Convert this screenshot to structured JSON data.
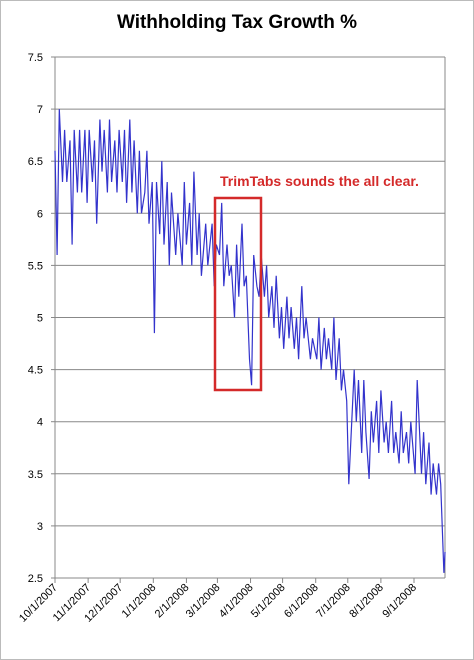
{
  "chart_data": {
    "type": "line",
    "title": "Withholding Tax Growth %",
    "annotation": "TrimTabs sounds the all clear.",
    "grid": true,
    "ylim": [
      2.5,
      7.5
    ],
    "yticks": [
      2.5,
      3,
      3.5,
      4,
      4.5,
      5,
      5.5,
      6,
      6.5,
      7,
      7.5
    ],
    "xlim": [
      "10/1/2007",
      "9/30/2008"
    ],
    "xticks": [
      "10/1/2007",
      "11/1/2007",
      "12/1/2007",
      "1/1/2008",
      "2/1/2008",
      "3/1/2008",
      "4/1/2008",
      "5/1/2008",
      "6/1/2008",
      "7/1/2008",
      "8/1/2008",
      "9/1/2008"
    ],
    "x": [
      "10/1/2007",
      "10/3/2007",
      "10/5/2007",
      "10/8/2007",
      "10/10/2007",
      "10/12/2007",
      "10/15/2007",
      "10/17/2007",
      "10/19/2007",
      "10/22/2007",
      "10/24/2007",
      "10/26/2007",
      "10/29/2007",
      "10/31/2007",
      "11/2/2007",
      "11/5/2007",
      "11/7/2007",
      "11/9/2007",
      "11/12/2007",
      "11/14/2007",
      "11/16/2007",
      "11/19/2007",
      "11/21/2007",
      "11/23/2007",
      "11/26/2007",
      "11/28/2007",
      "11/30/2007",
      "12/3/2007",
      "12/5/2007",
      "12/7/2007",
      "12/10/2007",
      "12/12/2007",
      "12/14/2007",
      "12/17/2007",
      "12/19/2007",
      "12/21/2007",
      "12/24/2007",
      "12/26/2007",
      "12/28/2007",
      "12/31/2007",
      "1/2/2008",
      "1/4/2008",
      "1/7/2008",
      "1/9/2008",
      "1/11/2008",
      "1/14/2008",
      "1/16/2008",
      "1/18/2008",
      "1/22/2008",
      "1/24/2008",
      "1/28/2008",
      "1/30/2008",
      "2/1/2008",
      "2/4/2008",
      "2/6/2008",
      "2/8/2008",
      "2/11/2008",
      "2/13/2008",
      "2/15/2008",
      "2/19/2008",
      "2/21/2008",
      "2/25/2008",
      "2/27/2008",
      "2/29/2008",
      "3/3/2008",
      "3/5/2008",
      "3/7/2008",
      "3/10/2008",
      "3/12/2008",
      "3/14/2008",
      "3/17/2008",
      "3/19/2008",
      "3/21/2008",
      "3/24/2008",
      "3/26/2008",
      "3/28/2008",
      "3/31/2008",
      "4/2/2008",
      "4/4/2008",
      "4/7/2008",
      "4/9/2008",
      "4/11/2008",
      "4/14/2008",
      "4/16/2008",
      "4/18/2008",
      "4/21/2008",
      "4/23/2008",
      "4/25/2008",
      "4/28/2008",
      "4/30/2008",
      "5/2/2008",
      "5/5/2008",
      "5/7/2008",
      "5/9/2008",
      "5/12/2008",
      "5/14/2008",
      "5/16/2008",
      "5/19/2008",
      "5/21/2008",
      "5/23/2008",
      "5/27/2008",
      "5/29/2008",
      "6/2/2008",
      "6/4/2008",
      "6/6/2008",
      "6/9/2008",
      "6/11/2008",
      "6/13/2008",
      "6/16/2008",
      "6/18/2008",
      "6/20/2008",
      "6/23/2008",
      "6/25/2008",
      "6/27/2008",
      "6/30/2008",
      "7/2/2008",
      "7/7/2008",
      "7/9/2008",
      "7/11/2008",
      "7/14/2008",
      "7/16/2008",
      "7/18/2008",
      "7/21/2008",
      "7/23/2008",
      "7/25/2008",
      "7/28/2008",
      "7/30/2008",
      "8/1/2008",
      "8/4/2008",
      "8/6/2008",
      "8/8/2008",
      "8/11/2008",
      "8/13/2008",
      "8/15/2008",
      "8/18/2008",
      "8/20/2008",
      "8/22/2008",
      "8/25/2008",
      "8/27/2008",
      "8/29/2008",
      "9/2/2008",
      "9/4/2008",
      "9/8/2008",
      "9/10/2008",
      "9/12/2008",
      "9/15/2008",
      "9/17/2008",
      "9/19/2008",
      "9/22/2008",
      "9/24/2008",
      "9/26/2008",
      "9/29/2008",
      "9/30/2008"
    ],
    "series": [
      {
        "name": "Withholding Tax Growth %",
        "color": "#3333cc",
        "values": [
          6.6,
          5.6,
          7.0,
          6.3,
          6.8,
          6.3,
          6.7,
          5.7,
          6.8,
          6.2,
          6.8,
          6.2,
          6.8,
          6.1,
          6.8,
          6.3,
          6.7,
          5.9,
          6.9,
          6.4,
          6.8,
          6.2,
          6.9,
          6.3,
          6.7,
          6.2,
          6.8,
          6.3,
          6.8,
          6.1,
          6.9,
          6.2,
          6.7,
          6.0,
          6.6,
          6.0,
          6.2,
          6.6,
          5.9,
          6.3,
          4.85,
          6.3,
          5.8,
          6.5,
          5.7,
          6.3,
          5.5,
          6.2,
          5.6,
          6.0,
          5.5,
          6.3,
          5.7,
          6.1,
          5.5,
          6.4,
          5.6,
          6.0,
          5.4,
          5.9,
          5.5,
          5.9,
          5.3,
          5.7,
          5.6,
          6.1,
          5.3,
          5.7,
          5.4,
          5.5,
          5.0,
          5.7,
          5.2,
          5.9,
          5.3,
          5.4,
          4.6,
          4.35,
          5.6,
          5.3,
          5.2,
          5.6,
          5.2,
          5.5,
          5.0,
          5.3,
          4.9,
          5.4,
          4.8,
          5.1,
          4.7,
          5.2,
          4.8,
          5.1,
          4.7,
          5.0,
          4.6,
          5.3,
          4.8,
          5.0,
          4.6,
          4.8,
          4.6,
          5.0,
          4.5,
          4.9,
          4.6,
          4.8,
          4.5,
          5.0,
          4.4,
          4.8,
          4.3,
          4.5,
          4.2,
          3.4,
          4.5,
          4.0,
          4.4,
          3.7,
          4.4,
          3.9,
          3.45,
          4.1,
          3.8,
          4.2,
          3.7,
          4.3,
          3.8,
          4.0,
          3.7,
          4.2,
          3.7,
          3.9,
          3.6,
          4.1,
          3.7,
          3.9,
          3.6,
          4.0,
          3.5,
          4.4,
          3.5,
          3.9,
          3.4,
          3.8,
          3.3,
          3.6,
          3.3,
          3.6,
          3.4,
          2.55,
          2.75
        ]
      }
    ]
  }
}
